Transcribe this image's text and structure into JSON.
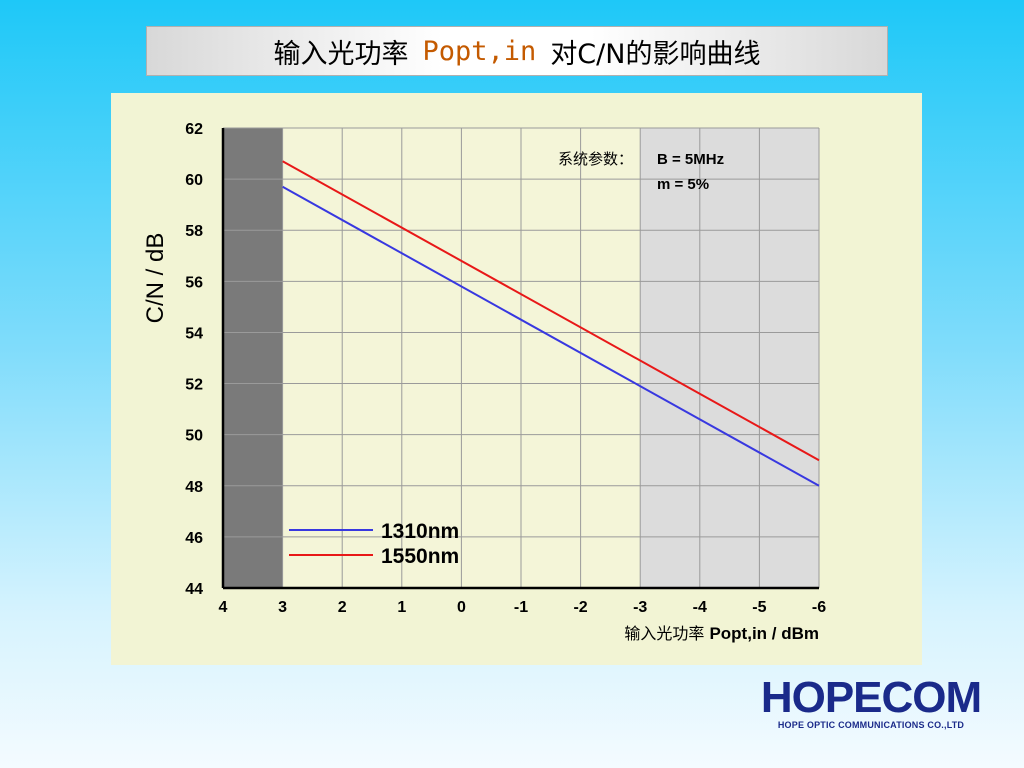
{
  "header": {
    "title_prefix": "输入光功率",
    "title_highlight": "Popt,in",
    "title_suffix": "对C/N的影响曲线"
  },
  "chart_data": {
    "type": "line",
    "title": "输入光功率 Popt,in 对C/N的影响曲线",
    "ylabel": "C/N / dB",
    "xlabel_cn": "输入光功率",
    "xlabel_en": "Popt,in / dBm",
    "x_ticks": [
      "4",
      "3",
      "2",
      "1",
      "0",
      "-1",
      "-2",
      "-3",
      "-4",
      "-5",
      "-6"
    ],
    "y_ticks": [
      "62",
      "60",
      "58",
      "56",
      "54",
      "52",
      "50",
      "48",
      "46",
      "44"
    ],
    "xlim": [
      4,
      -6
    ],
    "ylim": [
      44,
      62
    ],
    "x_reversed": true,
    "grid": true,
    "shaded_regions": [
      {
        "from": 4,
        "to": 3,
        "color": "#7a7a7a"
      },
      {
        "from": -3,
        "to": -6,
        "color": "#dcdcdc"
      }
    ],
    "series": [
      {
        "name": "1310nm",
        "color": "#3838e0",
        "x": [
          3,
          -6
        ],
        "y": [
          59.7,
          48.0
        ]
      },
      {
        "name": "1550nm",
        "color": "#e81818",
        "x": [
          3,
          -6
        ],
        "y": [
          60.7,
          49.0
        ]
      }
    ],
    "annotation": {
      "label": "系统参数：",
      "lines": [
        "B = 5MHz",
        "m = 5%"
      ]
    },
    "legend_position": "bottom-left"
  },
  "logo": {
    "name": "HOPECOM",
    "tagline": "HOPE OPTIC COMMUNICATIONS CO.,LTD"
  }
}
